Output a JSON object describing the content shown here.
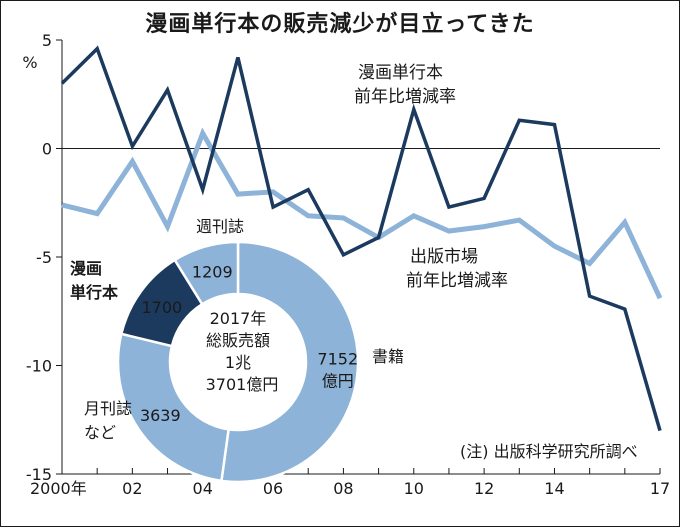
{
  "title": "漫画単行本の販売減少が目立ってきた",
  "y_unit": "%",
  "note": "(注) 出版科学研究所調べ",
  "chart_data": [
    {
      "type": "line",
      "x": [
        2000,
        2001,
        2002,
        2003,
        2004,
        2005,
        2006,
        2007,
        2008,
        2009,
        2010,
        2011,
        2012,
        2013,
        2014,
        2015,
        2016,
        2017
      ],
      "x_tick_labels": [
        {
          "x": 2000,
          "label": "2000年"
        },
        {
          "x": 2002,
          "label": "02"
        },
        {
          "x": 2004,
          "label": "04"
        },
        {
          "x": 2006,
          "label": "06"
        },
        {
          "x": 2008,
          "label": "08"
        },
        {
          "x": 2010,
          "label": "10"
        },
        {
          "x": 2012,
          "label": "12"
        },
        {
          "x": 2014,
          "label": "14"
        },
        {
          "x": 2017,
          "label": "17"
        }
      ],
      "y_ticks": [
        5,
        0,
        -5,
        -10,
        -15
      ],
      "y_tick_labels": [
        "5",
        "0",
        "-5",
        "-10",
        "-15"
      ],
      "ylim": [
        -15,
        5
      ],
      "series": [
        {
          "name": "漫画単行本 前年比増減率",
          "label_lines": [
            "漫画単行本",
            "前年比増減率"
          ],
          "color": "#1b3a5e",
          "values": [
            3.0,
            4.6,
            0.1,
            2.7,
            -1.9,
            4.2,
            -2.7,
            -1.9,
            -4.9,
            -4.1,
            1.8,
            -2.7,
            -2.3,
            1.3,
            1.1,
            -6.8,
            -7.4,
            -13.0
          ]
        },
        {
          "name": "出版市場 前年比増減率",
          "label_lines": [
            "出版市場",
            "前年比増減率"
          ],
          "color": "#8eb3d8",
          "values": [
            -2.6,
            -3.0,
            -0.6,
            -3.6,
            0.7,
            -2.1,
            -2.0,
            -3.1,
            -3.2,
            -4.1,
            -3.1,
            -3.8,
            -3.6,
            -3.3,
            -4.5,
            -5.3,
            -3.4,
            -6.9
          ]
        }
      ]
    },
    {
      "type": "pie",
      "center_text": [
        "2017年",
        "総販売額",
        "1兆",
        "3701億円"
      ],
      "slices": [
        {
          "name": "書籍",
          "value": 7152,
          "value_text": "7152",
          "value_text2": "億円",
          "color": "#8eb3d8"
        },
        {
          "name": "月刊誌など",
          "label_lines": [
            "月刊誌",
            "など"
          ],
          "value": 3639,
          "value_text": "3639",
          "color": "#8eb3d8"
        },
        {
          "name": "漫画単行本",
          "label_lines": [
            "漫画",
            "単行本"
          ],
          "value": 1700,
          "value_text": "1700",
          "color": "#1b3a5e"
        },
        {
          "name": "週刊誌",
          "value": 1209,
          "value_text": "1209",
          "color": "#8eb3d8"
        }
      ]
    }
  ]
}
